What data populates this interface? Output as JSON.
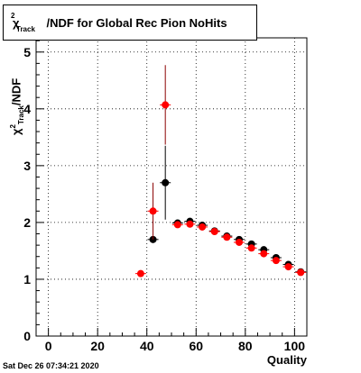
{
  "title": {
    "prefix_symbol": "χ",
    "superscript": "2",
    "subscript": "Track",
    "rest": "/NDF for Global Rec Pion NoHits"
  },
  "ylabel": {
    "symbol": "χ",
    "superscript": "2",
    "subscript": "Track",
    "rest": "/NDF"
  },
  "timestamp": "Sat Dec 26 07:34:21 2020",
  "chart_data": {
    "type": "scatter",
    "title": "χ²_Track/NDF for Global Rec Pion NoHits",
    "xlabel": "Quality",
    "ylabel": "χ²_Track/NDF",
    "xlim": [
      -5,
      105
    ],
    "ylim": [
      0,
      5.25
    ],
    "xticks": [
      0,
      20,
      40,
      60,
      80,
      100
    ],
    "yticks": [
      0,
      1,
      2,
      3,
      4,
      5
    ],
    "grid": true,
    "colors": {
      "black": "#000000",
      "red": "#ff0000",
      "darkred": "#8b0000"
    },
    "series": [
      {
        "color": "black",
        "points": [
          {
            "x": 42.5,
            "y": 1.7,
            "err": 0.0
          },
          {
            "x": 47.5,
            "y": 2.7,
            "err": 0.65
          },
          {
            "x": 52.5,
            "y": 1.99,
            "err": 0.05
          },
          {
            "x": 57.5,
            "y": 2.02,
            "err": 0.04
          },
          {
            "x": 62.5,
            "y": 1.95,
            "err": 0.03
          },
          {
            "x": 67.5,
            "y": 1.85,
            "err": 0.03
          },
          {
            "x": 72.5,
            "y": 1.76,
            "err": 0.03
          },
          {
            "x": 77.5,
            "y": 1.7,
            "err": 0.03
          },
          {
            "x": 82.5,
            "y": 1.62,
            "err": 0.03
          },
          {
            "x": 87.5,
            "y": 1.52,
            "err": 0.03
          },
          {
            "x": 92.5,
            "y": 1.38,
            "err": 0.03
          },
          {
            "x": 97.5,
            "y": 1.26,
            "err": 0.03
          },
          {
            "x": 102.5,
            "y": 1.13,
            "err": 0.03
          }
        ]
      },
      {
        "color": "red",
        "points": [
          {
            "x": 37.5,
            "y": 1.1,
            "err": 0.0
          },
          {
            "x": 42.5,
            "y": 2.2,
            "err": 0.5
          },
          {
            "x": 47.5,
            "y": 4.07,
            "err": 0.7
          },
          {
            "x": 52.5,
            "y": 1.96,
            "err": 0.05
          },
          {
            "x": 57.5,
            "y": 1.97,
            "err": 0.04
          },
          {
            "x": 62.5,
            "y": 1.92,
            "err": 0.03
          },
          {
            "x": 67.5,
            "y": 1.84,
            "err": 0.03
          },
          {
            "x": 72.5,
            "y": 1.74,
            "err": 0.03
          },
          {
            "x": 77.5,
            "y": 1.65,
            "err": 0.03
          },
          {
            "x": 82.5,
            "y": 1.55,
            "err": 0.03
          },
          {
            "x": 87.5,
            "y": 1.45,
            "err": 0.03
          },
          {
            "x": 92.5,
            "y": 1.33,
            "err": 0.03
          },
          {
            "x": 97.5,
            "y": 1.22,
            "err": 0.03
          },
          {
            "x": 102.5,
            "y": 1.12,
            "err": 0.03
          }
        ]
      }
    ]
  }
}
